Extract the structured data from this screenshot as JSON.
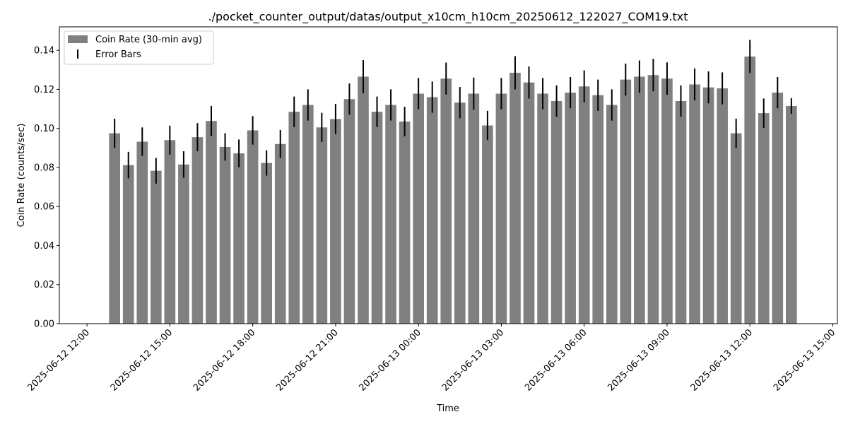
{
  "chart_data": {
    "type": "bar",
    "title": "./pocket_counter_output/datas/output_x10cm_h10cm_20250612_122027_COM19.txt",
    "xlabel": "Time",
    "ylabel": "Coin Rate (counts/sec)",
    "x_range": [
      "2025-06-12 11:00",
      "2025-06-13 15:10"
    ],
    "ylim": [
      0,
      0.152
    ],
    "y_ticks": [
      "0.00",
      "0.02",
      "0.04",
      "0.06",
      "0.08",
      "0.10",
      "0.12",
      "0.14"
    ],
    "x_ticks": [
      "2025-06-12 12:00",
      "2025-06-12 15:00",
      "2025-06-12 18:00",
      "2025-06-12 21:00",
      "2025-06-13 00:00",
      "2025-06-13 03:00",
      "2025-06-13 06:00",
      "2025-06-13 09:00",
      "2025-06-13 12:00",
      "2025-06-13 15:00"
    ],
    "grid": false,
    "legend": {
      "placement": "top-left",
      "entries": [
        "Coin Rate (30-min avg)",
        "Error Bars"
      ]
    },
    "colors": {
      "bar": "#808080",
      "error": "#000000"
    },
    "series": [
      {
        "name": "Coin Rate (30-min avg)",
        "x": [
          "2025-06-12 13:00",
          "2025-06-12 13:30",
          "2025-06-12 14:00",
          "2025-06-12 14:30",
          "2025-06-12 15:00",
          "2025-06-12 15:30",
          "2025-06-12 16:00",
          "2025-06-12 16:30",
          "2025-06-12 17:00",
          "2025-06-12 17:30",
          "2025-06-12 18:00",
          "2025-06-12 18:30",
          "2025-06-12 19:00",
          "2025-06-12 19:30",
          "2025-06-12 20:00",
          "2025-06-12 20:30",
          "2025-06-12 21:00",
          "2025-06-12 21:30",
          "2025-06-12 22:00",
          "2025-06-12 22:30",
          "2025-06-12 23:00",
          "2025-06-12 23:30",
          "2025-06-13 00:00",
          "2025-06-13 00:30",
          "2025-06-13 01:00",
          "2025-06-13 01:30",
          "2025-06-13 02:00",
          "2025-06-13 02:30",
          "2025-06-13 03:00",
          "2025-06-13 03:30",
          "2025-06-13 04:00",
          "2025-06-13 04:30",
          "2025-06-13 05:00",
          "2025-06-13 05:30",
          "2025-06-13 06:00",
          "2025-06-13 06:30",
          "2025-06-13 07:00",
          "2025-06-13 07:30",
          "2025-06-13 08:00",
          "2025-06-13 08:30",
          "2025-06-13 09:00",
          "2025-06-13 09:30",
          "2025-06-13 10:00",
          "2025-06-13 10:30",
          "2025-06-13 11:00",
          "2025-06-13 11:30",
          "2025-06-13 12:00",
          "2025-06-13 12:30",
          "2025-06-13 13:00",
          "2025-06-13 13:30"
        ],
        "values": [
          0.0975,
          0.0812,
          0.0932,
          0.0783,
          0.094,
          0.0815,
          0.0955,
          0.1038,
          0.0905,
          0.0872,
          0.099,
          0.0823,
          0.092,
          0.1085,
          0.112,
          0.1005,
          0.1048,
          0.115,
          0.1265,
          0.1085,
          0.112,
          0.1035,
          0.1178,
          0.116,
          0.1255,
          0.1132,
          0.1178,
          0.1015,
          0.1178,
          0.1285,
          0.1235,
          0.1178,
          0.114,
          0.1183,
          0.1215,
          0.117,
          0.112,
          0.125,
          0.1265,
          0.1273,
          0.1255,
          0.114,
          0.1225,
          0.121,
          0.1205,
          0.0975,
          0.1368,
          0.1078,
          0.1183,
          0.1115
        ],
        "errors": [
          0.0075,
          0.0068,
          0.0073,
          0.0066,
          0.0074,
          0.0068,
          0.0072,
          0.0077,
          0.007,
          0.0071,
          0.0073,
          0.0065,
          0.0072,
          0.0078,
          0.008,
          0.0075,
          0.0077,
          0.008,
          0.0085,
          0.0078,
          0.008,
          0.0076,
          0.008,
          0.008,
          0.0082,
          0.008,
          0.0082,
          0.0075,
          0.008,
          0.0085,
          0.0082,
          0.008,
          0.008,
          0.008,
          0.0082,
          0.008,
          0.008,
          0.0082,
          0.0083,
          0.0083,
          0.0083,
          0.008,
          0.0082,
          0.0082,
          0.0082,
          0.0075,
          0.0085,
          0.0075,
          0.008,
          0.004
        ]
      }
    ]
  }
}
